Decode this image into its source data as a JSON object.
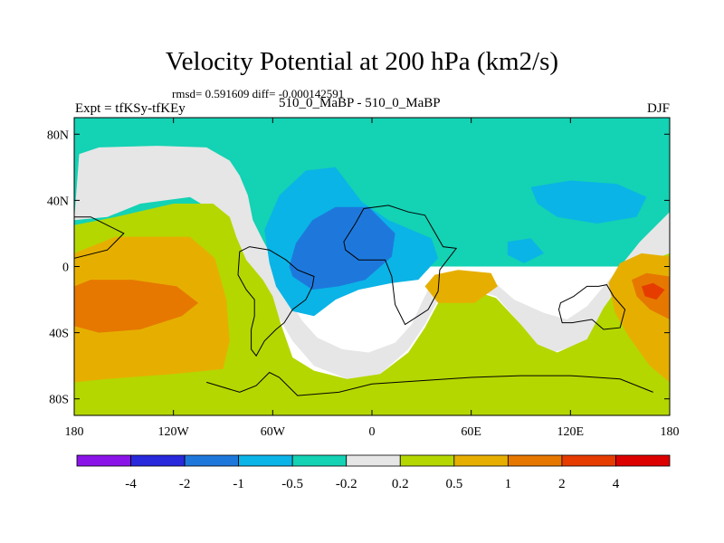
{
  "chart_data": {
    "type": "heatmap",
    "title": "Velocity Potential at 200 hPa (km2/s)",
    "stats_text": "rmsd= 0.591609 diff= -0.000142591",
    "left_label": "Expt = tfKSy-tfKEy",
    "center_label": "510_0_MaBP - 510_0_MaBP",
    "right_label": "DJF",
    "x_ticks": [
      "180",
      "120W",
      "60W",
      "0",
      "60E",
      "120E",
      "180"
    ],
    "x_tick_lon": [
      -180,
      -120,
      -60,
      0,
      60,
      120,
      180
    ],
    "y_ticks": [
      "80N",
      "40N",
      "0",
      "40S",
      "80S"
    ],
    "y_tick_lat": [
      80,
      40,
      0,
      -40,
      -80
    ],
    "xlim": [
      -180,
      180
    ],
    "ylim": [
      -90,
      90
    ],
    "colorbar": {
      "levels": [
        "-4",
        "-2",
        "-1",
        "-0.5",
        "-0.2",
        "0.2",
        "0.5",
        "1",
        "2",
        "4"
      ],
      "colors": [
        "#8a14e8",
        "#2828dc",
        "#1e78dc",
        "#0ab4e6",
        "#14d2b4",
        "#e6e6e6",
        "#b4d700",
        "#e6af00",
        "#e67800",
        "#e63c00",
        "#dc0000"
      ]
    },
    "regions": [
      {
        "name": "northern-teal-band",
        "value_band": "-0.5 to -0.2",
        "color": "#14d2b4",
        "lonlat": [
          [
            -180,
            90
          ],
          [
            180,
            90
          ],
          [
            180,
            0
          ],
          [
            -180,
            0
          ]
        ]
      },
      {
        "name": "gray-tongue-pacific",
        "value_band": "-0.2 to 0.2",
        "color": "#e6e6e6",
        "lonlat": [
          [
            -177,
            68
          ],
          [
            -165,
            72
          ],
          [
            -130,
            73
          ],
          [
            -100,
            72
          ],
          [
            -86,
            64
          ],
          [
            -80,
            55
          ],
          [
            -75,
            43
          ],
          [
            -72,
            28
          ],
          [
            -66,
            16
          ],
          [
            -60,
            5
          ],
          [
            -54,
            -8
          ],
          [
            -50,
            -20
          ],
          [
            -42,
            -33
          ],
          [
            -33,
            -43
          ],
          [
            -18,
            -50
          ],
          [
            -2,
            -52
          ],
          [
            14,
            -46
          ],
          [
            24,
            -35
          ],
          [
            30,
            -22
          ],
          [
            36,
            -10
          ],
          [
            52,
            -2
          ],
          [
            70,
            -6
          ],
          [
            86,
            -20
          ],
          [
            104,
            -28
          ],
          [
            118,
            -32
          ],
          [
            130,
            -24
          ],
          [
            150,
            0
          ],
          [
            162,
            15
          ],
          [
            180,
            33
          ],
          [
            180,
            5
          ],
          [
            165,
            -5
          ],
          [
            150,
            -20
          ],
          [
            130,
            -45
          ],
          [
            110,
            -52
          ],
          [
            100,
            -48
          ],
          [
            90,
            -35
          ],
          [
            75,
            -18
          ],
          [
            55,
            -12
          ],
          [
            40,
            -20
          ],
          [
            32,
            -35
          ],
          [
            22,
            -50
          ],
          [
            5,
            -65
          ],
          [
            -15,
            -68
          ],
          [
            -35,
            -60
          ],
          [
            -48,
            -45
          ],
          [
            -58,
            -28
          ],
          [
            -64,
            -15
          ],
          [
            -74,
            0
          ],
          [
            -82,
            15
          ],
          [
            -90,
            30
          ],
          [
            -110,
            42
          ],
          [
            -140,
            38
          ],
          [
            -160,
            30
          ],
          [
            -180,
            28
          ]
        ]
      },
      {
        "name": "green-south-belt",
        "value_band": "0.2 to 0.5",
        "color": "#b4d700",
        "lonlat": [
          [
            -180,
            25
          ],
          [
            -155,
            30
          ],
          [
            -120,
            38
          ],
          [
            -96,
            38
          ],
          [
            -86,
            30
          ],
          [
            -82,
            18
          ],
          [
            -76,
            4
          ],
          [
            -66,
            -8
          ],
          [
            -60,
            -18
          ],
          [
            -55,
            -35
          ],
          [
            -48,
            -55
          ],
          [
            -35,
            -63
          ],
          [
            -15,
            -68
          ],
          [
            5,
            -65
          ],
          [
            22,
            -52
          ],
          [
            32,
            -37
          ],
          [
            40,
            -22
          ],
          [
            56,
            -13
          ],
          [
            75,
            -19
          ],
          [
            90,
            -35
          ],
          [
            100,
            -47
          ],
          [
            112,
            -52
          ],
          [
            130,
            -44
          ],
          [
            140,
            -25
          ],
          [
            158,
            0
          ],
          [
            180,
            8
          ],
          [
            180,
            -90
          ],
          [
            -180,
            -90
          ]
        ]
      },
      {
        "name": "blue-mid-atlantic-region",
        "value_band": "-1 to -0.5",
        "color": "#0ab4e6",
        "lonlat": [
          [
            -58,
            -12
          ],
          [
            -48,
            -27
          ],
          [
            -35,
            -30
          ],
          [
            -22,
            -20
          ],
          [
            -8,
            -14
          ],
          [
            12,
            -10
          ],
          [
            28,
            -8
          ],
          [
            40,
            5
          ],
          [
            36,
            17
          ],
          [
            10,
            28
          ],
          [
            -6,
            39
          ],
          [
            -22,
            60
          ],
          [
            -40,
            58
          ],
          [
            -56,
            43
          ],
          [
            -65,
            22
          ],
          [
            -62,
            2
          ]
        ]
      },
      {
        "name": "blue-core-region",
        "value_band": "-2 to -1",
        "color": "#1e78dc",
        "lonlat": [
          [
            -48,
            -6
          ],
          [
            -36,
            -14
          ],
          [
            -20,
            -12
          ],
          [
            -4,
            -8
          ],
          [
            12,
            6
          ],
          [
            14,
            20
          ],
          [
            -2,
            36
          ],
          [
            -22,
            36
          ],
          [
            -36,
            28
          ],
          [
            -46,
            14
          ],
          [
            -50,
            0
          ]
        ]
      },
      {
        "name": "blue-north-pacific-right",
        "value_band": "-1 to -0.5",
        "color": "#0ab4e6",
        "lonlat": [
          [
            96,
            48
          ],
          [
            120,
            52
          ],
          [
            148,
            50
          ],
          [
            166,
            42
          ],
          [
            160,
            30
          ],
          [
            136,
            26
          ],
          [
            112,
            30
          ],
          [
            100,
            38
          ]
        ]
      },
      {
        "name": "blue-small-asia-patch",
        "value_band": "-1 to -0.5",
        "color": "#0ab4e6",
        "lonlat": [
          [
            82,
            15
          ],
          [
            96,
            17
          ],
          [
            104,
            8
          ],
          [
            92,
            2
          ],
          [
            82,
            7
          ]
        ]
      },
      {
        "name": "orange-west-region",
        "value_band": "0.5 to 1",
        "color": "#e6af00",
        "lonlat": [
          [
            -180,
            8
          ],
          [
            -155,
            18
          ],
          [
            -110,
            18
          ],
          [
            -95,
            5
          ],
          [
            -88,
            -20
          ],
          [
            -86,
            -45
          ],
          [
            -90,
            -62
          ],
          [
            -120,
            -65
          ],
          [
            -160,
            -68
          ],
          [
            -180,
            -70
          ]
        ]
      },
      {
        "name": "darkorange-west-core",
        "value_band": "1 to 2",
        "color": "#e67800",
        "lonlat": [
          [
            -180,
            -12
          ],
          [
            -170,
            -8
          ],
          [
            -145,
            -8
          ],
          [
            -118,
            -12
          ],
          [
            -105,
            -22
          ],
          [
            -115,
            -30
          ],
          [
            -140,
            -38
          ],
          [
            -165,
            -40
          ],
          [
            -180,
            -36
          ]
        ]
      },
      {
        "name": "orange-center-blob",
        "value_band": "0.5 to 1",
        "color": "#e6af00",
        "lonlat": [
          [
            32,
            -12
          ],
          [
            40,
            -22
          ],
          [
            62,
            -22
          ],
          [
            76,
            -12
          ],
          [
            72,
            -4
          ],
          [
            52,
            -2
          ],
          [
            38,
            -5
          ]
        ]
      },
      {
        "name": "orange-east-region",
        "value_band": "0.5 to 1",
        "color": "#e6af00",
        "lonlat": [
          [
            143,
            -10
          ],
          [
            150,
            2
          ],
          [
            163,
            8
          ],
          [
            180,
            6
          ],
          [
            180,
            -70
          ],
          [
            168,
            -60
          ],
          [
            155,
            -42
          ],
          [
            147,
            -28
          ]
        ]
      },
      {
        "name": "darkorange-east-core",
        "value_band": "1 to 2",
        "color": "#e67800",
        "lonlat": [
          [
            157,
            -8
          ],
          [
            166,
            -4
          ],
          [
            180,
            -6
          ],
          [
            180,
            -32
          ],
          [
            168,
            -26
          ],
          [
            160,
            -18
          ]
        ]
      },
      {
        "name": "red-east-spot",
        "value_band": "2 to 4",
        "color": "#e63c00",
        "lonlat": [
          [
            163,
            -12
          ],
          [
            170,
            -10
          ],
          [
            177,
            -14
          ],
          [
            172,
            -20
          ],
          [
            165,
            -18
          ]
        ]
      }
    ],
    "land_outlines": [
      {
        "name": "south-america-outline",
        "lonlat": [
          [
            -80,
            9
          ],
          [
            -74,
            12
          ],
          [
            -62,
            10
          ],
          [
            -52,
            4
          ],
          [
            -45,
            -2
          ],
          [
            -35,
            -6
          ],
          [
            -36,
            -12
          ],
          [
            -40,
            -20
          ],
          [
            -48,
            -26
          ],
          [
            -53,
            -34
          ],
          [
            -58,
            -38
          ],
          [
            -65,
            -45
          ],
          [
            -70,
            -54
          ],
          [
            -73,
            -50
          ],
          [
            -73,
            -38
          ],
          [
            -71,
            -30
          ],
          [
            -71,
            -20
          ],
          [
            -76,
            -14
          ],
          [
            -81,
            -5
          ]
        ]
      },
      {
        "name": "africa-outline",
        "lonlat": [
          [
            -17,
            15
          ],
          [
            -10,
            26
          ],
          [
            -5,
            35
          ],
          [
            10,
            37
          ],
          [
            22,
            33
          ],
          [
            32,
            31
          ],
          [
            43,
            12
          ],
          [
            51,
            11
          ],
          [
            41,
            -2
          ],
          [
            40,
            -15
          ],
          [
            34,
            -26
          ],
          [
            20,
            -35
          ],
          [
            14,
            -23
          ],
          [
            12,
            -6
          ],
          [
            8,
            4
          ],
          [
            -8,
            4
          ],
          [
            -16,
            10
          ]
        ]
      },
      {
        "name": "australia-outline",
        "lonlat": [
          [
            114,
            -22
          ],
          [
            122,
            -18
          ],
          [
            130,
            -12
          ],
          [
            137,
            -12
          ],
          [
            142,
            -11
          ],
          [
            146,
            -18
          ],
          [
            153,
            -26
          ],
          [
            150,
            -37
          ],
          [
            140,
            -38
          ],
          [
            133,
            -32
          ],
          [
            121,
            -34
          ],
          [
            115,
            -34
          ],
          [
            113,
            -26
          ]
        ]
      },
      {
        "name": "antarctica-coast-outline",
        "lonlat": [
          [
            -100,
            -70
          ],
          [
            -80,
            -76
          ],
          [
            -70,
            -72
          ],
          [
            -62,
            -64
          ],
          [
            -56,
            -67
          ],
          [
            -45,
            -78
          ],
          [
            -20,
            -76
          ],
          [
            0,
            -71
          ],
          [
            30,
            -69
          ],
          [
            60,
            -67
          ],
          [
            90,
            -66
          ],
          [
            120,
            -66
          ],
          [
            150,
            -68
          ],
          [
            170,
            -76
          ]
        ]
      },
      {
        "name": "north-america-fragment-outline",
        "lonlat": [
          [
            -180,
            30
          ],
          [
            -170,
            30
          ],
          [
            -160,
            25
          ],
          [
            -150,
            20
          ],
          [
            -160,
            10
          ],
          [
            -180,
            5
          ]
        ]
      }
    ]
  }
}
